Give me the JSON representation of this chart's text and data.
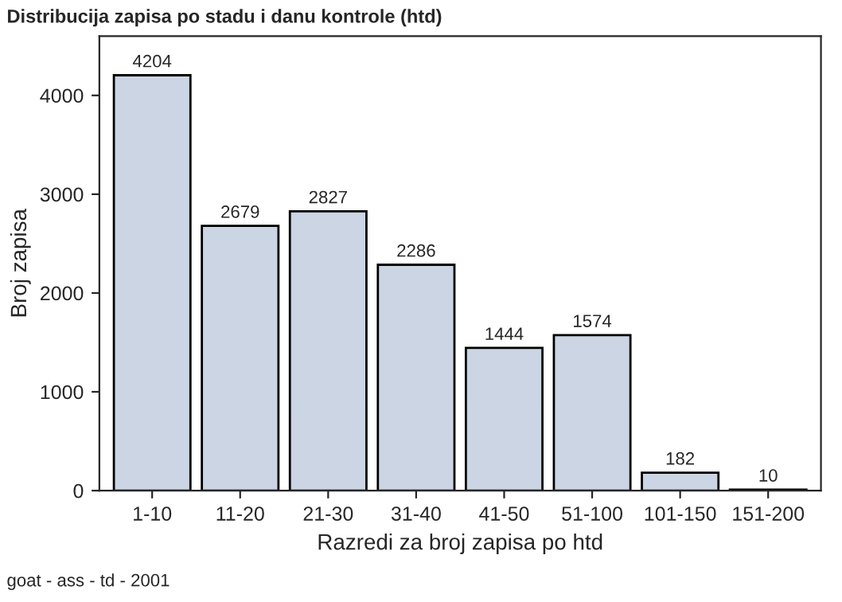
{
  "chart_data": {
    "type": "bar",
    "title": "Distribucija zapisa po stadu i danu kontrole (htd)",
    "xlabel": "Razredi za broj zapisa po htd",
    "ylabel": "Broj zapisa",
    "categories": [
      "1-10",
      "11-20",
      "21-30",
      "31-40",
      "41-50",
      "51-100",
      "101-150",
      "151-200"
    ],
    "values": [
      4204,
      2679,
      2827,
      2286,
      1444,
      1574,
      182,
      10
    ],
    "color": "#cbd5e3",
    "ylim": [
      0,
      4600
    ],
    "yticks": [
      0,
      1000,
      2000,
      3000,
      4000
    ],
    "data_labels": true,
    "grid": false,
    "legend": false,
    "annotations": [
      "goat - ass - td - 2001"
    ]
  }
}
